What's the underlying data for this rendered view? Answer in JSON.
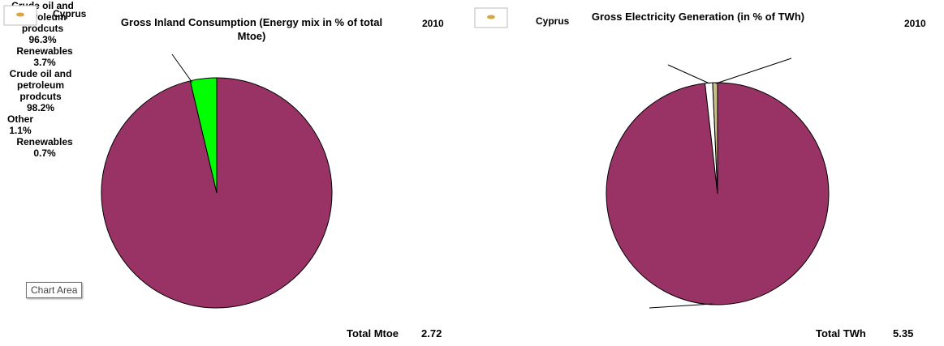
{
  "chart_data": [
    {
      "type": "pie",
      "country": "Cyprus",
      "title": "Gross  Inland Consumption  (Energy  mix in % of total Mtoe)",
      "year": "2010",
      "categories": [
        "Crude oil and petroleum prodcuts",
        "Renewables"
      ],
      "values": [
        96.3,
        3.7
      ],
      "value_labels": [
        "96.3%",
        "3.7%"
      ],
      "colors": [
        "#993366",
        "#00ff00"
      ],
      "total_label": "Total Mtoe",
      "total": "2.72"
    },
    {
      "type": "pie",
      "country": "Cyprus",
      "title": "Gross  Electricity  Generation (in % of TWh)",
      "year": "2010",
      "categories": [
        "Crude oil and petroleum prodcuts",
        "Other",
        "Renewables"
      ],
      "values": [
        98.2,
        1.1,
        0.7
      ],
      "value_labels": [
        "98.2%",
        "1.1%",
        "0.7%"
      ],
      "colors": [
        "#993366",
        "#ffffff",
        "#c8bf8a"
      ],
      "total_label": "Total TWh",
      "total": "5.35"
    }
  ],
  "tooltip": "Chart Area"
}
